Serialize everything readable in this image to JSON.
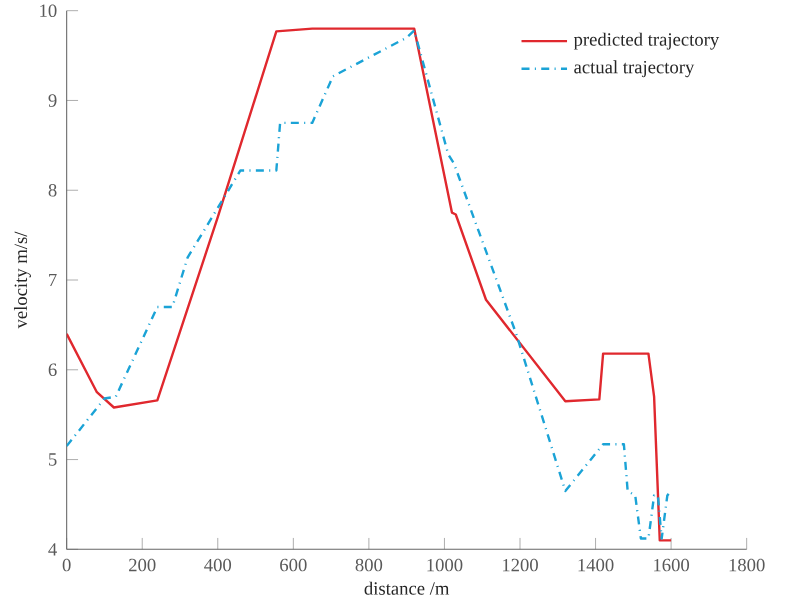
{
  "chart_data": {
    "type": "line",
    "xlabel": "distance /m",
    "ylabel": "velocity m/s/",
    "xlim": [
      0,
      1800
    ],
    "ylim": [
      4,
      10
    ],
    "xticks": [
      0,
      200,
      400,
      600,
      800,
      1000,
      1200,
      1400,
      1600,
      1800
    ],
    "yticks": [
      4,
      5,
      6,
      7,
      8,
      9,
      10
    ],
    "legend": "top right",
    "grid": false,
    "series": [
      {
        "name": "predicted trajectory",
        "color": "#e0282e",
        "line_style": "solid",
        "x": [
          0,
          80,
          125,
          240,
          400,
          555,
          650,
          920,
          1020,
          1030,
          1110,
          1320,
          1410,
          1420,
          1540,
          1555,
          1570,
          1600
        ],
        "values": [
          6.4,
          5.75,
          5.58,
          5.66,
          7.7,
          9.77,
          9.8,
          9.8,
          7.75,
          7.73,
          6.78,
          5.65,
          5.67,
          6.18,
          6.18,
          5.7,
          4.1,
          4.1
        ]
      },
      {
        "name": "actual trajectory",
        "color": "#1ba3d6",
        "line_style": "dashdot",
        "x": [
          0,
          100,
          130,
          240,
          280,
          320,
          460,
          555,
          565,
          650,
          705,
          900,
          920,
          1010,
          1025,
          1190,
          1320,
          1420,
          1475,
          1485,
          1505,
          1520,
          1540,
          1555,
          1565,
          1575,
          1590,
          1600
        ],
        "values": [
          5.15,
          5.68,
          5.7,
          6.7,
          6.7,
          7.25,
          8.22,
          8.22,
          8.75,
          8.75,
          9.27,
          9.7,
          9.78,
          8.4,
          8.3,
          6.4,
          4.65,
          5.17,
          5.17,
          4.65,
          4.6,
          4.12,
          4.12,
          4.6,
          4.6,
          4.12,
          4.6,
          4.65
        ]
      }
    ]
  }
}
